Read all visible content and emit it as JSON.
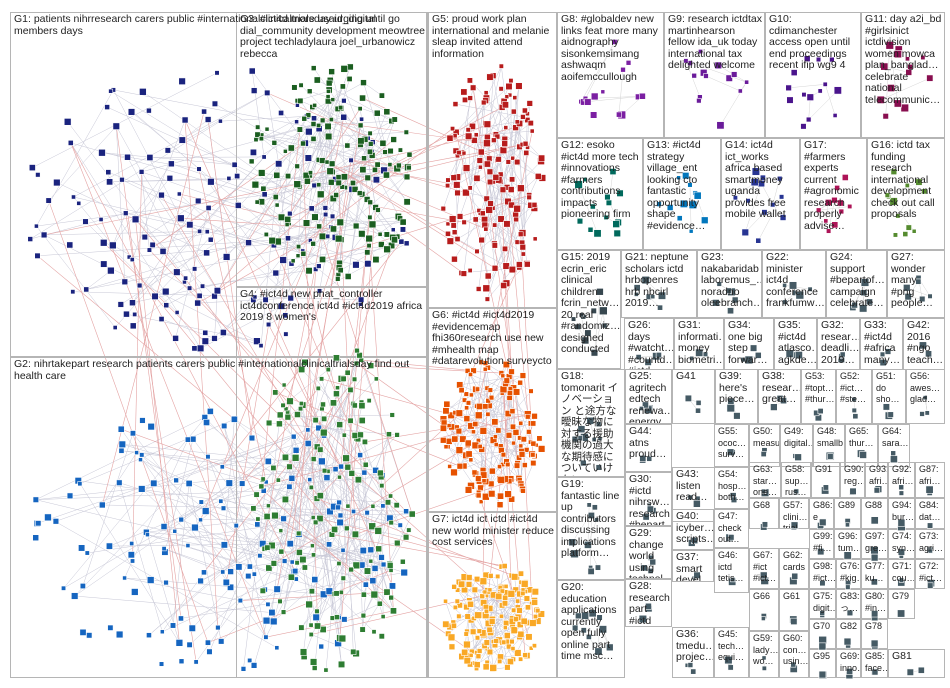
{
  "groups": [
    {
      "id": "G1",
      "label": "G1: patients nihrresearch carers public #internationalclinicaltrialsday urging until go members days",
      "color": "#1a237e"
    },
    {
      "id": "G2",
      "label": "G2: nihrtakepart research patients carers public #internationalclinicaltrialsday find out health care",
      "color": "#1565c0"
    },
    {
      "id": "G3",
      "label": "G3: #ict4d more usaid_digital dial_community development meowtree project techladylaura joel_urbanowicz rebecca",
      "color": "#1b5e20"
    },
    {
      "id": "G4",
      "label": "G4: #ict4d new phat_controller ict4dconference ict4d #ict4d2019 africa 2019 8 women's",
      "color": "#2e7d32"
    },
    {
      "id": "G5",
      "label": "G5: proud work plan international and melanie sleap invited attend information",
      "color": "#b71c1c"
    },
    {
      "id": "G6",
      "label": "G6: #ict4d #ict4d2019 #evidencemap fhi360research use new #mhealth map #datarevolution surveycto",
      "color": "#e65100"
    },
    {
      "id": "G7",
      "label": "G7: ict4d ict ictd #ict4d new world minister reduce cost services",
      "color": "#f9a825"
    },
    {
      "id": "G8",
      "label": "G8: #globaldev new links feat more many aidnography sisonkemsimang ashwaqm aoifemccullough",
      "color": "#7b1fa2"
    },
    {
      "id": "G9",
      "label": "G9: research ictdtax martinhearson fellow ida_uk today international tax delighted welcome",
      "color": "#6a1b9a"
    },
    {
      "id": "G10",
      "label": "G10: cdimanchester access open until end proceedings recent ifip wg9 4",
      "color": "#4a148c"
    },
    {
      "id": "G11",
      "label": "G11: day a2i_bd #girlsinict ictdivision women mowca plan_banglad… celebrate national telecommunic…",
      "color": "#880e4f"
    },
    {
      "id": "G12",
      "label": "G12: esoko #ict4d more tech #innovations #farmers contributions impacts pioneering firm",
      "color": "#00695c"
    },
    {
      "id": "G13",
      "label": "G13: #ict4d strategy village_ent looking cto fantastic opportunity shape #evidence…",
      "color": "#0277bd"
    },
    {
      "id": "G14",
      "label": "G14: ict4d ict_works africa based smartmoney uganda provides free mobile wallet",
      "color": "#283593"
    },
    {
      "id": "G15",
      "label": "G15: 2019 ecrin_eric clinical children fcrin_netw… 20 real #randomiz… designed conducted",
      "color": "#37474f"
    },
    {
      "id": "G16",
      "label": "G16: ictd tax funding research international development check out call proposals",
      "color": "#558b2f"
    },
    {
      "id": "G17",
      "label": "G17: #farmers experts current #agronomic research properly advise…",
      "color": "#ad1457"
    },
    {
      "id": "G18",
      "label": "G18: tomonarit イノベーション と途方な曖昧な物に対する援助機関の過大な期待感についていけない…",
      "color": "#455a64"
    },
    {
      "id": "G19",
      "label": "G19: fantastic line up contributors discussing implications platform…",
      "color": "#455a64"
    },
    {
      "id": "G20",
      "label": "G20: education applications currently open fully online part time msc…",
      "color": "#455a64"
    },
    {
      "id": "G21",
      "label": "G21: neptune scholars ictd hrbopenres hrb nbcirl 2019…",
      "color": "#455a64"
    },
    {
      "id": "G22",
      "label": "G22: minister ict4d conference frankfumw…",
      "color": "#455a64"
    },
    {
      "id": "G23",
      "label": "G23: nakabaridab laboremus_… noradno oleebranch…",
      "color": "#455a64"
    },
    {
      "id": "G24",
      "label": "G24: support #bepartof… campaign celebrate…",
      "color": "#455a64"
    },
    {
      "id": "G25",
      "label": "G25: agritech edtech renewa… energy…",
      "color": "#455a64"
    },
    {
      "id": "G26",
      "label": "G26: days #watcht… #countd… #ictd…",
      "color": "#455a64"
    },
    {
      "id": "G27",
      "label": "G27: wonder many #png people…",
      "color": "#455a64"
    },
    {
      "id": "G28",
      "label": "G28: research part #ictd listen bbcnotti…",
      "color": "#455a64"
    },
    {
      "id": "G29",
      "label": "G29: change world using technol…",
      "color": "#455a64"
    },
    {
      "id": "G30",
      "label": "G30: #ictd nihrsw… research #bepart…",
      "color": "#455a64"
    },
    {
      "id": "G31",
      "label": "G31: informati… money biometri…",
      "color": "#455a64"
    },
    {
      "id": "G32",
      "label": "G32: resear… deadli… 2019…",
      "color": "#455a64"
    },
    {
      "id": "G33",
      "label": "G33: #ict4d #africa many…",
      "color": "#455a64"
    },
    {
      "id": "G34",
      "label": "G34: one big step forwar…",
      "color": "#455a64"
    },
    {
      "id": "G35",
      "label": "G35: #ict4d atlasco… agkde…",
      "color": "#455a64"
    },
    {
      "id": "G36",
      "label": "G36: tmedu… projec…",
      "color": "#455a64"
    },
    {
      "id": "G37",
      "label": "G37: smart devel…",
      "color": "#455a64"
    },
    {
      "id": "G38",
      "label": "G38: resear… great…",
      "color": "#455a64"
    },
    {
      "id": "G39",
      "label": "G39: here's piece…",
      "color": "#455a64"
    },
    {
      "id": "G40",
      "label": "G40: icyber… scripts…",
      "color": "#455a64"
    },
    {
      "id": "G41",
      "label": "G41",
      "color": "#455a64"
    },
    {
      "id": "G42",
      "label": "G42: 2016 #ngo teach…",
      "color": "#455a64"
    },
    {
      "id": "G43",
      "label": "G43: listen read…",
      "color": "#455a64"
    },
    {
      "id": "G44",
      "label": "G44: atns proud…",
      "color": "#455a64"
    },
    {
      "id": "G45",
      "label": "G45: tech… equi…",
      "color": "#455a64"
    },
    {
      "id": "G46",
      "label": "G46: ictd tetis…",
      "color": "#455a64"
    },
    {
      "id": "G47",
      "label": "G47: check out…",
      "color": "#455a64"
    },
    {
      "id": "G48",
      "label": "G48: smallb…",
      "color": "#455a64"
    },
    {
      "id": "G49",
      "label": "G49: digital…",
      "color": "#455a64"
    },
    {
      "id": "G50",
      "label": "G50: measu…",
      "color": "#455a64"
    },
    {
      "id": "G51",
      "label": "G51: do sho…",
      "color": "#455a64"
    },
    {
      "id": "G52",
      "label": "G52: #ict… #ste…",
      "color": "#455a64"
    },
    {
      "id": "G53",
      "label": "G53: #topt… #thur…",
      "color": "#455a64"
    },
    {
      "id": "G54",
      "label": "G54: hosp… both…",
      "color": "#455a64"
    },
    {
      "id": "G55",
      "label": "G55: ococ… surv…",
      "color": "#455a64"
    },
    {
      "id": "G56",
      "label": "G56: awes… glad…",
      "color": "#455a64"
    },
    {
      "id": "G57",
      "label": "G57: clini… trial…",
      "color": "#455a64"
    },
    {
      "id": "G58",
      "label": "G58: sup… rus…",
      "color": "#455a64"
    },
    {
      "id": "G59",
      "label": "G59: lady… wo…",
      "color": "#455a64"
    },
    {
      "id": "G60",
      "label": "G60: con… usin…",
      "color": "#455a64"
    },
    {
      "id": "G61",
      "label": "G61",
      "color": "#455a64"
    },
    {
      "id": "G62",
      "label": "G62: cards",
      "color": "#455a64"
    },
    {
      "id": "G63",
      "label": "G63: star… one…",
      "color": "#455a64"
    },
    {
      "id": "G64",
      "label": "G64: sara…",
      "color": "#455a64"
    },
    {
      "id": "G65",
      "label": "G65: thur…",
      "color": "#455a64"
    },
    {
      "id": "G66",
      "label": "G66",
      "color": "#455a64"
    },
    {
      "id": "G67",
      "label": "G67: #ict #ict…",
      "color": "#455a64"
    },
    {
      "id": "G68",
      "label": "G68",
      "color": "#455a64"
    },
    {
      "id": "G69",
      "label": "G69: inno…",
      "color": "#455a64"
    },
    {
      "id": "G70",
      "label": "G70",
      "color": "#455a64"
    },
    {
      "id": "G71",
      "label": "G71: cou…",
      "color": "#455a64"
    },
    {
      "id": "G72",
      "label": "G72: #ict…",
      "color": "#455a64"
    },
    {
      "id": "G73",
      "label": "G73: agri…",
      "color": "#455a64"
    },
    {
      "id": "G74",
      "label": "G74: syn…",
      "color": "#455a64"
    },
    {
      "id": "G75",
      "label": "G75: digit…",
      "color": "#455a64"
    },
    {
      "id": "G76",
      "label": "G76: #kig…",
      "color": "#455a64"
    },
    {
      "id": "G77",
      "label": "G77: ku…",
      "color": "#455a64"
    },
    {
      "id": "G78",
      "label": "G78",
      "color": "#455a64"
    },
    {
      "id": "G79",
      "label": "G79",
      "color": "#455a64"
    },
    {
      "id": "G80",
      "label": "G80: #in…",
      "color": "#455a64"
    },
    {
      "id": "G81",
      "label": "G81",
      "color": "#455a64"
    },
    {
      "id": "G82",
      "label": "G82",
      "color": "#455a64"
    },
    {
      "id": "G83",
      "label": "G83: っ…",
      "color": "#455a64"
    },
    {
      "id": "G84",
      "label": "G84: dat…",
      "color": "#455a64"
    },
    {
      "id": "G85",
      "label": "G85: face…",
      "color": "#455a64"
    },
    {
      "id": "G86",
      "label": "G86: e",
      "color": "#455a64"
    },
    {
      "id": "G87",
      "label": "G87: afri…",
      "color": "#455a64"
    },
    {
      "id": "G88",
      "label": "G88",
      "color": "#455a64"
    },
    {
      "id": "G89",
      "label": "G89",
      "color": "#455a64"
    },
    {
      "id": "G90",
      "label": "G90: reg…",
      "color": "#455a64"
    },
    {
      "id": "G91",
      "label": "G91",
      "color": "#455a64"
    },
    {
      "id": "G92",
      "label": "G92: afri…",
      "color": "#455a64"
    },
    {
      "id": "G93",
      "label": "G93: afri…",
      "color": "#455a64"
    },
    {
      "id": "G94",
      "label": "G94: bur…",
      "color": "#455a64"
    },
    {
      "id": "G95",
      "label": "G95",
      "color": "#455a64"
    },
    {
      "id": "G96",
      "label": "G96: tum…",
      "color": "#455a64"
    },
    {
      "id": "G97",
      "label": "G97: gre…",
      "color": "#455a64"
    },
    {
      "id": "G98",
      "label": "G98: #ict…",
      "color": "#455a64"
    },
    {
      "id": "G99",
      "label": "G99: #fi…",
      "color": "#455a64"
    }
  ]
}
